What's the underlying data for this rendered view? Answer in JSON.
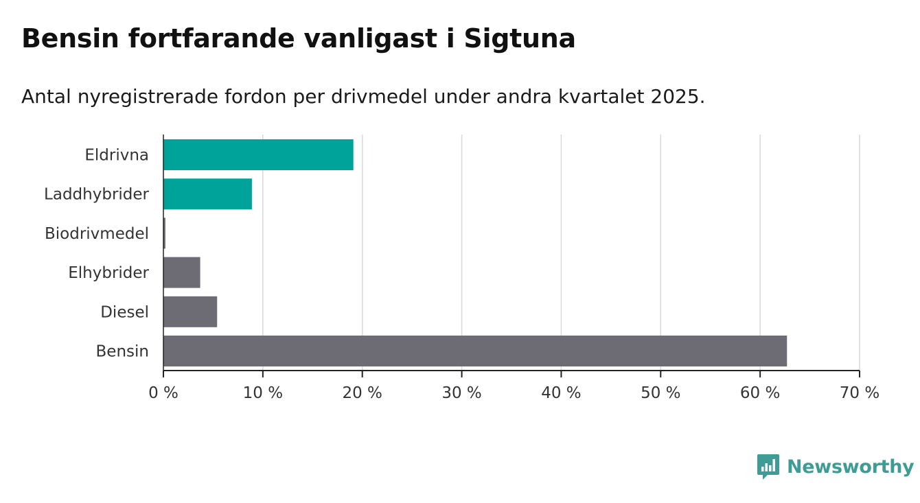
{
  "title": "Bensin fortfarande vanligast i Sigtuna",
  "subtitle": "Antal nyregistrerade fordon per drivmedel under andra kvartalet 2025.",
  "brand": {
    "name": "Newsworthy",
    "icon": "newsworthy-logo-icon"
  },
  "colors": {
    "highlight": "#00a39a",
    "default": "#6d6b74",
    "grid": "#d9d9d9",
    "axis": "#222222"
  },
  "chart_data": {
    "type": "bar",
    "orientation": "horizontal",
    "categories": [
      "Eldrivna",
      "Laddhybrider",
      "Biodrivmedel",
      "Elhybrider",
      "Diesel",
      "Bensin"
    ],
    "values": [
      19.1,
      8.9,
      0.2,
      3.7,
      5.4,
      62.7
    ],
    "highlighted": [
      true,
      true,
      false,
      false,
      false,
      false
    ],
    "unit": "%",
    "xlim": [
      0,
      70
    ],
    "xticks": [
      0,
      10,
      20,
      30,
      40,
      50,
      60,
      70
    ],
    "xtick_labels": [
      "0 %",
      "10 %",
      "20 %",
      "30 %",
      "40 %",
      "50 %",
      "60 %",
      "70 %"
    ],
    "grid": true
  }
}
